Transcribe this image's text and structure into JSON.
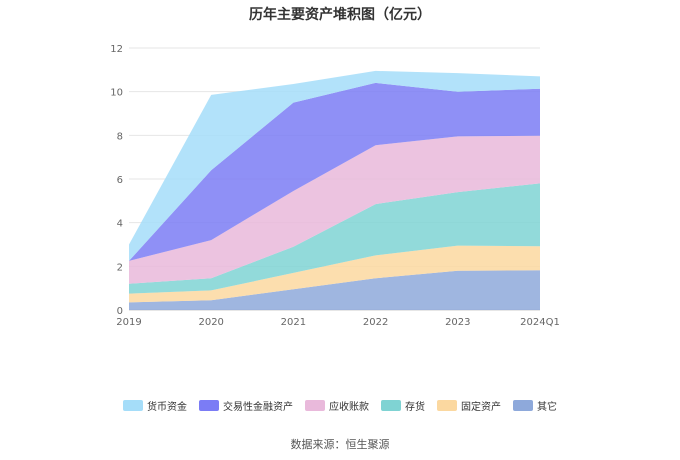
{
  "title": "历年主要资产堆积图（亿元）",
  "source": "数据来源：恒生聚源",
  "chart_data": {
    "type": "area",
    "stacked": true,
    "title": "历年主要资产堆积图（亿元）",
    "xlabel": "",
    "ylabel": "",
    "categories": [
      "2019",
      "2020",
      "2021",
      "2022",
      "2023",
      "2024Q1"
    ],
    "ylim": [
      0,
      12
    ],
    "yticks": [
      0,
      2,
      4,
      6,
      8,
      10,
      12
    ],
    "grid": true,
    "legend_position": "bottom",
    "series": [
      {
        "name": "其它",
        "color": "#8EA9DB",
        "values": [
          0.35,
          0.45,
          0.95,
          1.45,
          1.8,
          1.82
        ]
      },
      {
        "name": "固定资产",
        "color": "#FBD8A0",
        "values": [
          0.4,
          0.45,
          0.75,
          1.05,
          1.15,
          1.1
        ]
      },
      {
        "name": "存货",
        "color": "#7FD3D3",
        "values": [
          0.45,
          0.55,
          1.2,
          2.35,
          2.45,
          2.88
        ]
      },
      {
        "name": "应收账款",
        "color": "#E9B9DB",
        "values": [
          1.05,
          1.75,
          2.55,
          2.7,
          2.55,
          2.18
        ]
      },
      {
        "name": "交易性金融资产",
        "color": "#7B7CF5",
        "values": [
          0.0,
          3.2,
          4.05,
          2.85,
          2.05,
          2.15
        ]
      },
      {
        "name": "货币资金",
        "color": "#A5DDF9",
        "values": [
          0.75,
          3.45,
          0.85,
          0.55,
          0.85,
          0.57
        ]
      }
    ]
  }
}
